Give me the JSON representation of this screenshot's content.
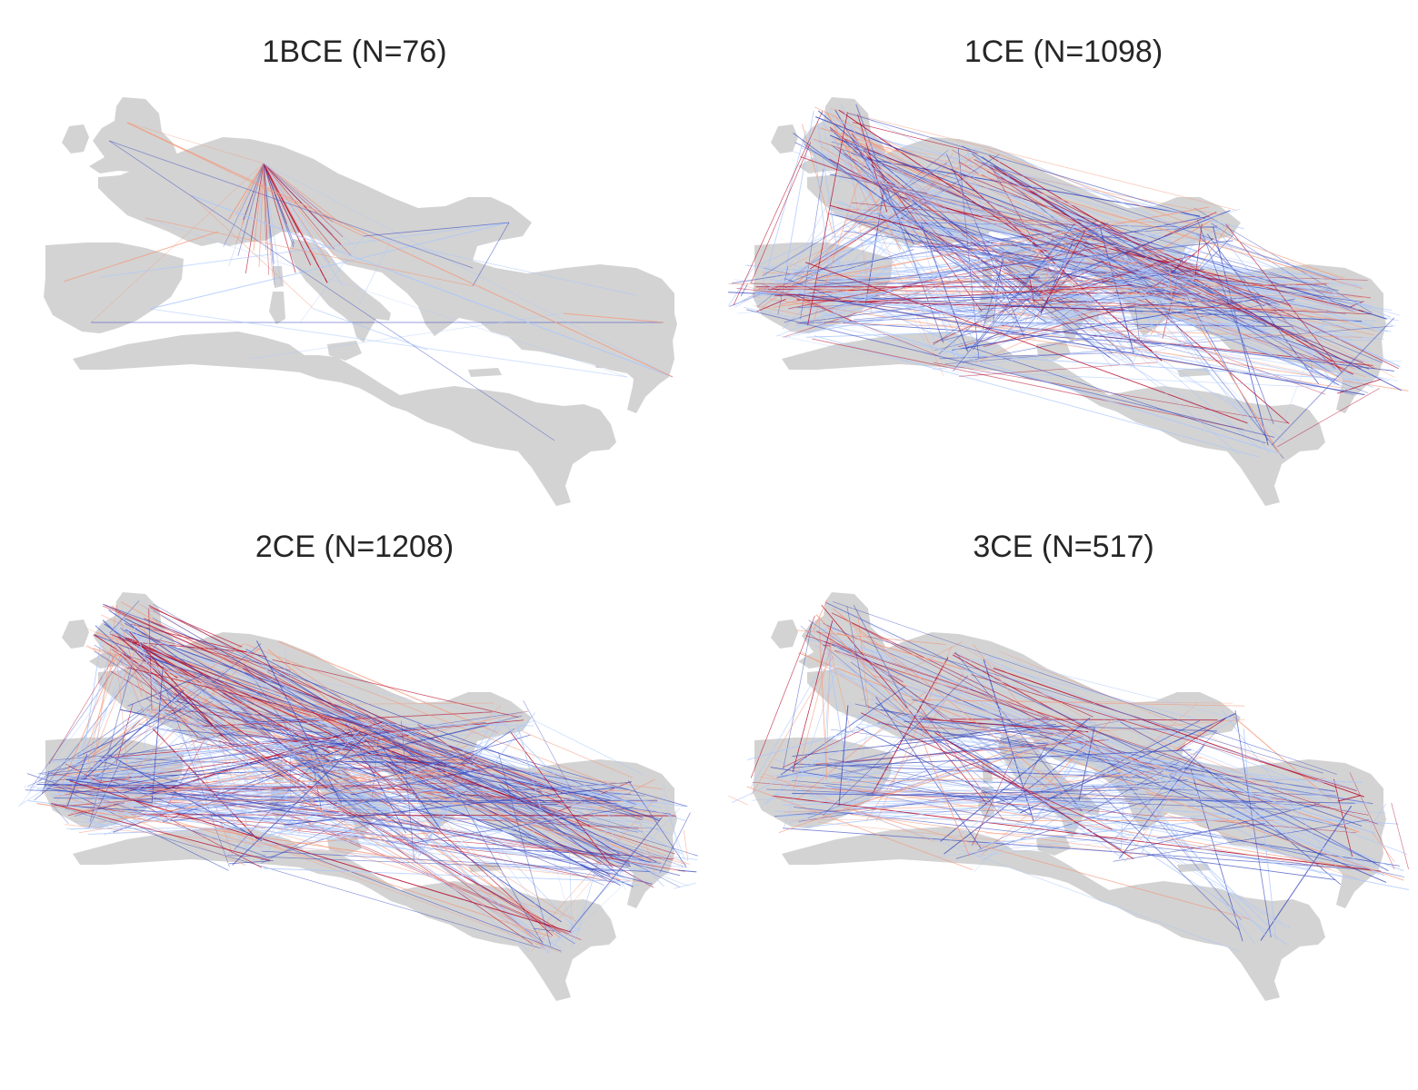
{
  "colors": {
    "land": "#d3d3d3",
    "strong_red": "#b40426",
    "light_red": "#f4987a",
    "strong_blue": "#3b4cc0",
    "light_blue": "#aac7fd",
    "title_text": "#262626"
  },
  "panels": [
    {
      "title": "1BCE (N=76)",
      "period": "1BCE",
      "n": 76
    },
    {
      "title": "1CE (N=1098)",
      "period": "1CE",
      "n": 1098
    },
    {
      "title": "2CE (N=1208)",
      "period": "2CE",
      "n": 1208
    },
    {
      "title": "3CE (N=517)",
      "period": "3CE",
      "n": 517
    }
  ]
}
